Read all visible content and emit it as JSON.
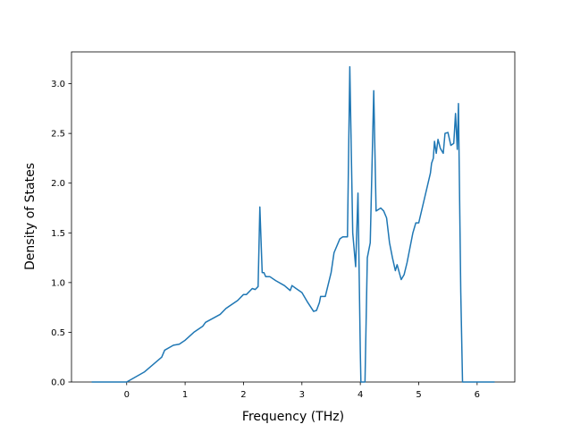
{
  "chart_data": {
    "type": "line",
    "xlabel": "Frequency (THz)",
    "ylabel": "Density of States",
    "x": [
      -0.6,
      0,
      0.3,
      0.6,
      0.65,
      0.8,
      0.9,
      1.0,
      1.15,
      1.3,
      1.35,
      1.6,
      1.7,
      1.9,
      2.0,
      2.05,
      2.15,
      2.2,
      2.25,
      2.28,
      2.32,
      2.35,
      2.38,
      2.45,
      2.55,
      2.7,
      2.8,
      2.83,
      2.9,
      3.0,
      3.1,
      3.2,
      3.25,
      3.3,
      3.32,
      3.4,
      3.5,
      3.55,
      3.65,
      3.7,
      3.78,
      3.82,
      3.87,
      3.92,
      3.96,
      4.0,
      4.01,
      4.08,
      4.12,
      4.17,
      4.23,
      4.27,
      4.35,
      4.4,
      4.45,
      4.5,
      4.55,
      4.6,
      4.63,
      4.7,
      4.75,
      4.8,
      4.9,
      4.95,
      5.0,
      5.1,
      5.2,
      5.22,
      5.25,
      5.27,
      5.3,
      5.33,
      5.37,
      5.42,
      5.45,
      5.5,
      5.55,
      5.6,
      5.63,
      5.66,
      5.68,
      5.72,
      5.75,
      6.3
    ],
    "series": [
      {
        "name": "DOS",
        "color": "#1f77b4",
        "values": [
          0,
          0,
          0.1,
          0.25,
          0.32,
          0.37,
          0.38,
          0.42,
          0.5,
          0.56,
          0.6,
          0.68,
          0.74,
          0.82,
          0.88,
          0.88,
          0.94,
          0.93,
          0.96,
          1.76,
          1.1,
          1.1,
          1.06,
          1.06,
          1.02,
          0.97,
          0.92,
          0.97,
          0.94,
          0.9,
          0.8,
          0.71,
          0.72,
          0.8,
          0.86,
          0.86,
          1.1,
          1.3,
          1.44,
          1.46,
          1.46,
          3.17,
          1.5,
          1.16,
          1.9,
          0.3,
          0,
          0,
          1.25,
          1.4,
          2.93,
          1.72,
          1.75,
          1.72,
          1.65,
          1.4,
          1.25,
          1.12,
          1.18,
          1.03,
          1.08,
          1.2,
          1.5,
          1.6,
          1.6,
          1.85,
          2.1,
          2.2,
          2.25,
          2.42,
          2.3,
          2.44,
          2.35,
          2.3,
          2.5,
          2.51,
          2.38,
          2.4,
          2.7,
          2.34,
          2.8,
          0.9,
          0,
          0
        ]
      }
    ],
    "xlim": [
      -0.945,
      6.645
    ],
    "ylim": [
      0,
      3.32
    ],
    "xticks": [
      0,
      1,
      2,
      3,
      4,
      5,
      6
    ],
    "yticks": [
      {
        "value": 0,
        "label": "0.0"
      },
      {
        "value": 0.5,
        "label": "0.5"
      },
      {
        "value": 1,
        "label": "1.0"
      },
      {
        "value": 1.5,
        "label": "1.5"
      },
      {
        "value": 2,
        "label": "2.0"
      },
      {
        "value": 2.5,
        "label": "2.5"
      },
      {
        "value": 3,
        "label": "3.0"
      }
    ],
    "grid": false
  }
}
